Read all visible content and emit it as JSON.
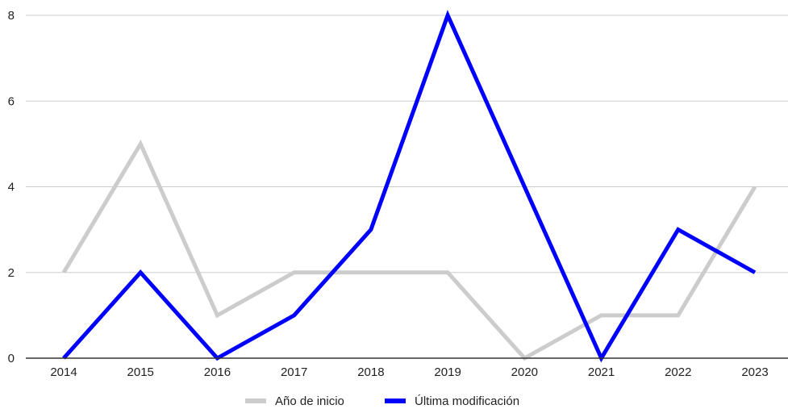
{
  "chart_data": {
    "type": "line",
    "title": "",
    "xlabel": "",
    "ylabel": "",
    "categories": [
      "2014",
      "2015",
      "2016",
      "2017",
      "2018",
      "2019",
      "2020",
      "2021",
      "2022",
      "2023"
    ],
    "ylim": [
      0,
      8
    ],
    "yticks": [
      0,
      2,
      4,
      6,
      8
    ],
    "grid": true,
    "legend_position": "bottom",
    "series": [
      {
        "name": "Año de inicio",
        "color": "#cccccc",
        "values": [
          2,
          5,
          1,
          2,
          2,
          2,
          0,
          1,
          1,
          4
        ]
      },
      {
        "name": "Última modificación",
        "color": "#0000ff",
        "values": [
          0,
          2,
          0,
          1,
          3,
          8,
          4,
          0,
          3,
          2
        ]
      }
    ]
  }
}
